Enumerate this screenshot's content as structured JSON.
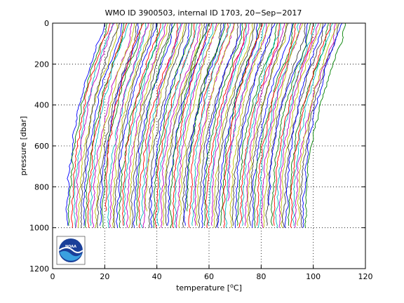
{
  "chart_data": {
    "type": "line",
    "title": "WMO ID 3900503, internal ID 1703, 20−Sep−2017",
    "xlabel_prefix": "temperature [",
    "xlabel_degree": "o",
    "xlabel_suffix": "C]",
    "ylabel": "pressure [dbar]",
    "xlim": [
      0,
      120
    ],
    "ylim": [
      1200,
      0
    ],
    "y_reversed": true,
    "xticks": [
      0,
      20,
      40,
      60,
      80,
      100,
      120
    ],
    "yticks": [
      0,
      200,
      400,
      600,
      800,
      1000,
      1200
    ],
    "grid": "dotted",
    "profile_count": 100,
    "profile_offset_step": 1,
    "surface_temperature_range": [
      20,
      112
    ],
    "deep_temperature_range": [
      5.5,
      97
    ],
    "max_pressure": 1000,
    "colors": [
      "#0000ff",
      "#008000",
      "#ff0000",
      "#00bfbf",
      "#bf00bf",
      "#bfbf00",
      "#404040"
    ],
    "logo": {
      "text": "NOAA",
      "position": "bottom-left"
    }
  }
}
